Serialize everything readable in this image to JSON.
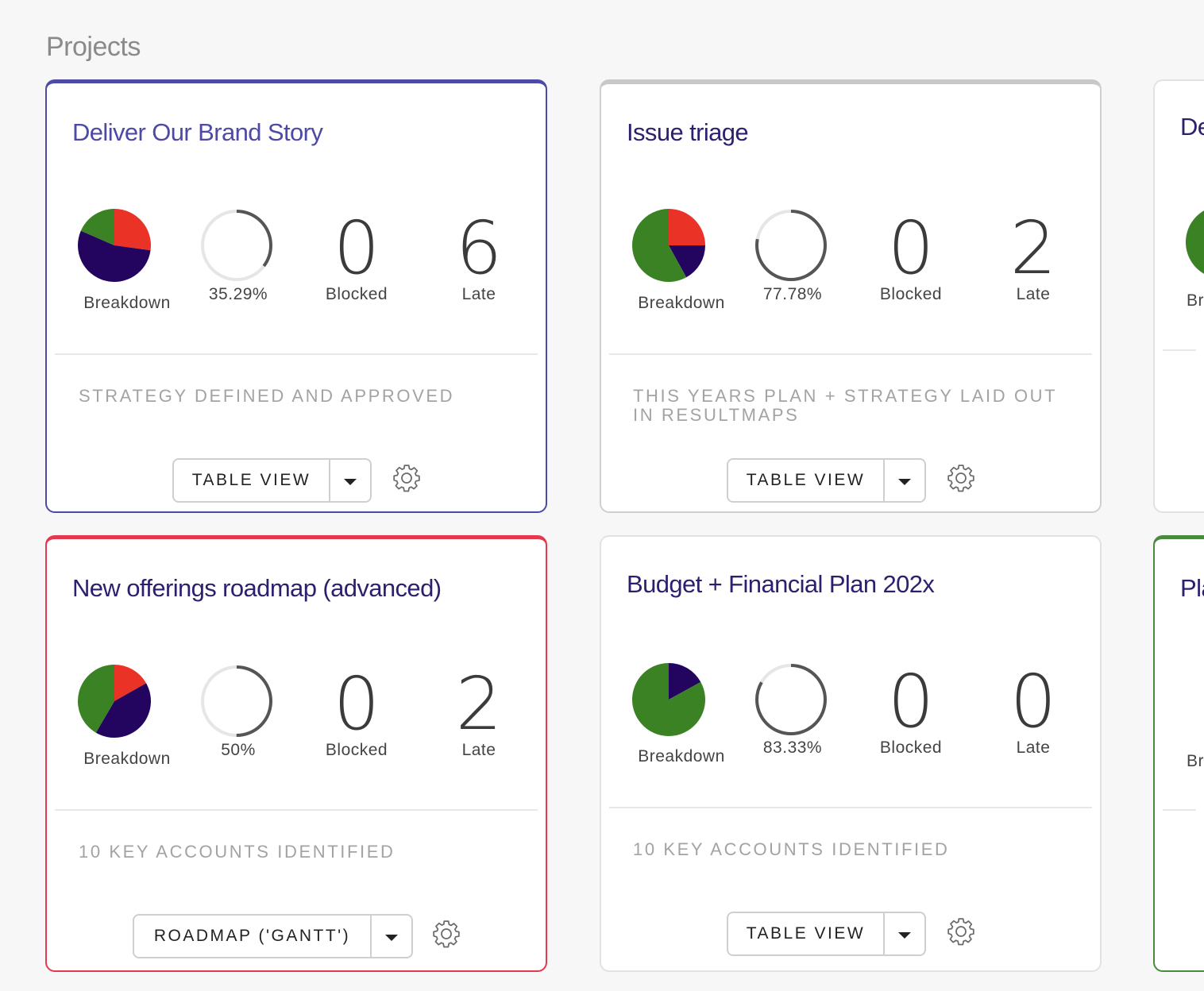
{
  "page": {
    "title": "Projects"
  },
  "colors": {
    "indigo": "#4d4aa6",
    "red": "#e4384f",
    "green": "#4a8a3e",
    "pie_green": "#3a8224",
    "pie_red": "#ea3326",
    "pie_navy": "#23045e",
    "ring": "#555555",
    "ring_bg": "#e6e6e6"
  },
  "common": {
    "breakdown_label": "Breakdown",
    "blocked_label": "Blocked",
    "late_label": "Late"
  },
  "cards": [
    {
      "title": "Deliver Our Brand Story",
      "progress": "35.29%",
      "progress_value": 35.29,
      "blocked": "0",
      "late": "6",
      "milestone": "STRATEGY DEFINED AND APPROVED",
      "view": "TABLE VIEW",
      "breakdown": {
        "green": 0.17,
        "red": 0.25,
        "navy": 0.5
      }
    },
    {
      "title": "Issue triage",
      "progress": "77.78%",
      "progress_value": 77.78,
      "blocked": "0",
      "late": "2",
      "milestone": "THIS YEARS PLAN + STRATEGY LAID OUT IN RESULTMAPS",
      "view": "TABLE VIEW",
      "breakdown": {
        "green": 0.58,
        "red": 0.25,
        "navy": 0.17
      }
    },
    {
      "title": "De",
      "breakdown_label": "Br"
    },
    {
      "title": "New offerings roadmap (advanced)",
      "progress": "50%",
      "progress_value": 50,
      "blocked": "0",
      "late": "2",
      "milestone": "10 KEY ACCOUNTS IDENTIFIED",
      "view": "ROADMAP ('GANTT')",
      "breakdown": {
        "green": 0.42,
        "red": 0.17,
        "navy": 0.42
      }
    },
    {
      "title": "Budget + Financial Plan 202x",
      "progress": "83.33%",
      "progress_value": 83.33,
      "blocked": "0",
      "late": "0",
      "milestone": "10 KEY ACCOUNTS IDENTIFIED",
      "view": "TABLE VIEW",
      "breakdown": {
        "green": 0.83,
        "red": 0.0,
        "navy": 0.17
      }
    },
    {
      "title": "Pla",
      "breakdown_label": "Br"
    }
  ]
}
